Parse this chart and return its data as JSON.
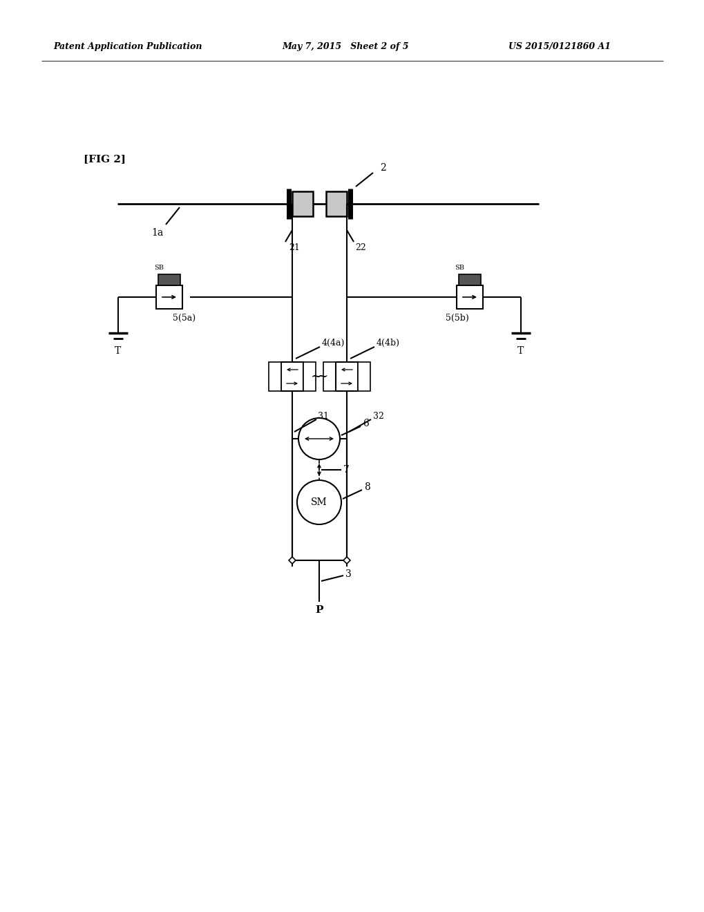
{
  "background_color": "#ffffff",
  "header_left": "Patent Application Publication",
  "header_center": "May 7, 2015   Sheet 2 of 5",
  "header_right": "US 2015/0121860 A1",
  "fig_label": "[FIG 2]"
}
